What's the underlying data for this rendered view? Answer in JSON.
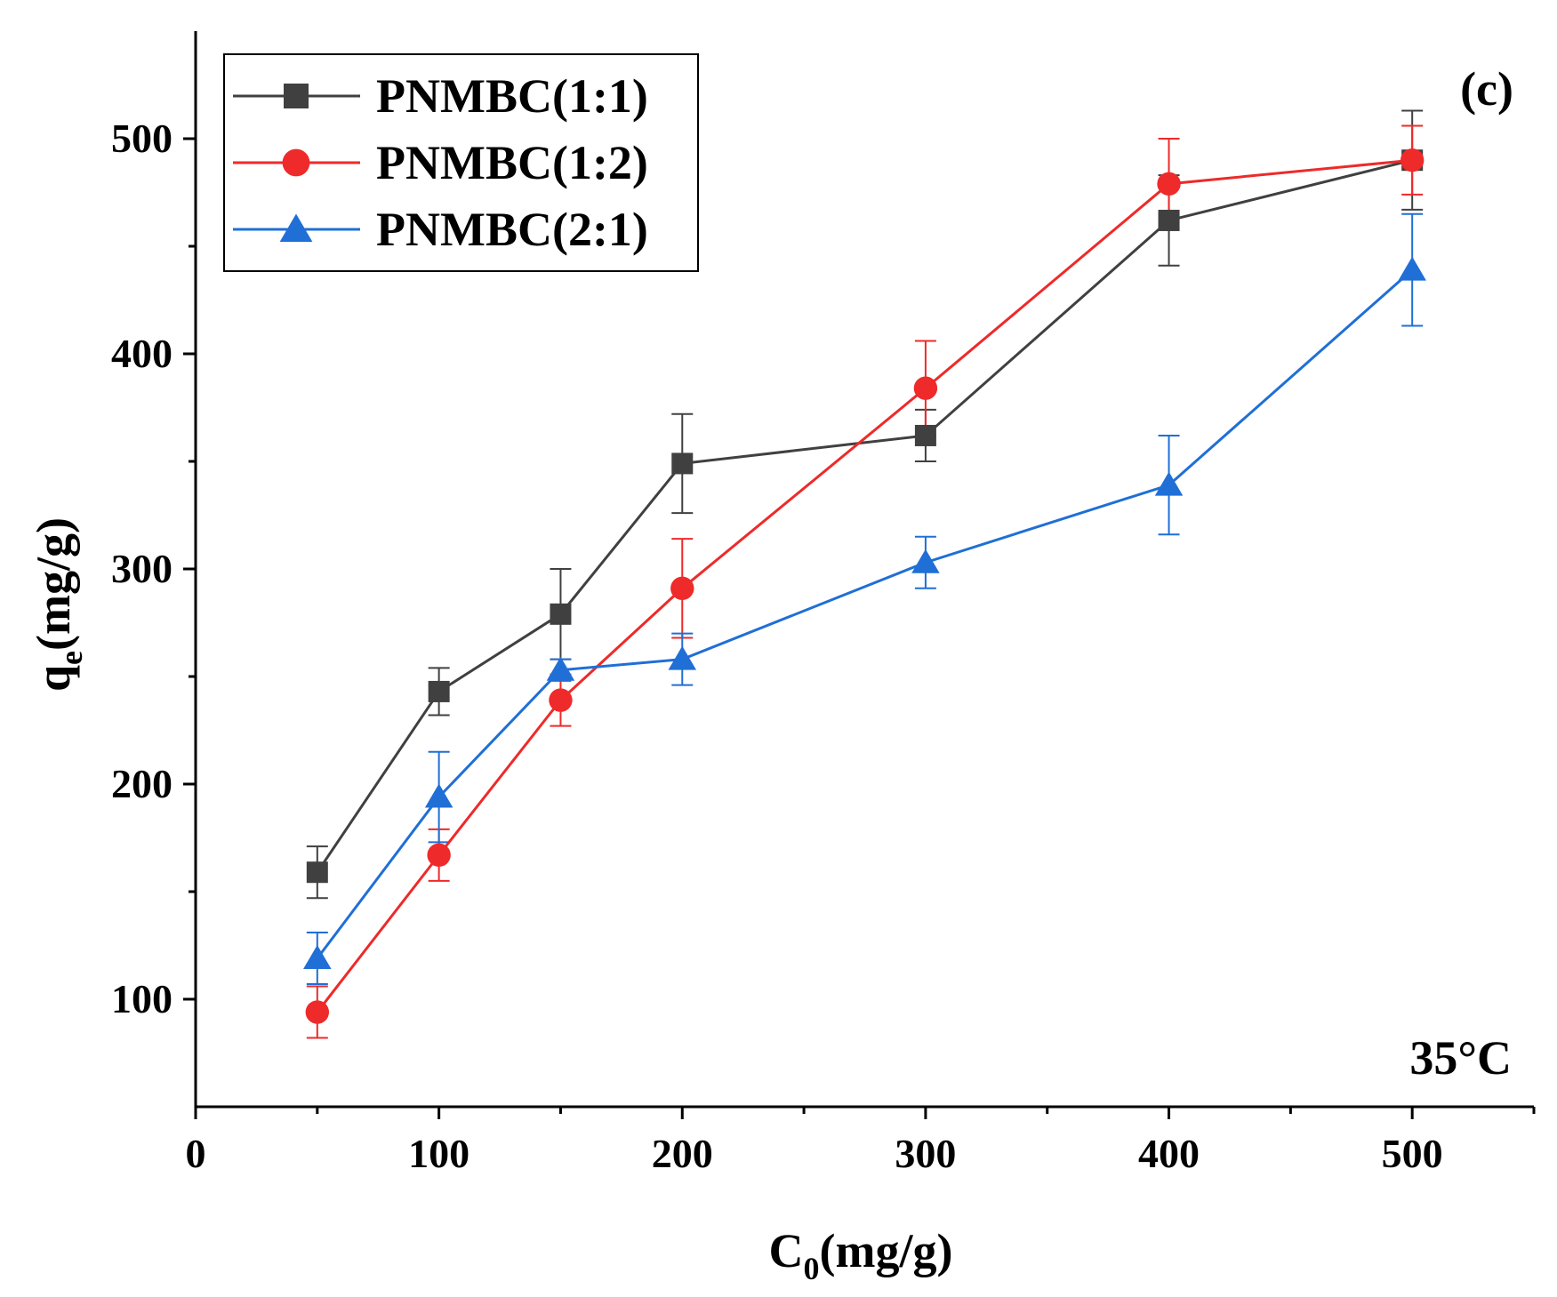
{
  "chart_data": {
    "type": "line",
    "title": "",
    "panel_label": "(c)",
    "annotation": "35°C",
    "xlabel": {
      "main": "C",
      "sub": "0",
      "rest": "(mg/g)"
    },
    "ylabel": {
      "main": "q",
      "sub": "e",
      "rest": "(mg/g)"
    },
    "xlim": [
      0,
      550
    ],
    "ylim": [
      50,
      550
    ],
    "xticks": [
      0,
      100,
      200,
      300,
      400,
      500
    ],
    "yticks": [
      100,
      200,
      300,
      400,
      500
    ],
    "xtick_labels": [
      "0",
      "100",
      "200",
      "300",
      "400",
      "500"
    ],
    "ytick_labels": [
      "100",
      "200",
      "300",
      "400",
      "500"
    ],
    "grid": false,
    "legend_position": "top-left",
    "x": [
      50,
      100,
      150,
      200,
      300,
      400,
      500
    ],
    "series": [
      {
        "name": "PNMBC(1:1)",
        "color": "#404040",
        "marker": "square",
        "values": [
          159,
          243,
          279,
          349,
          362,
          462,
          490
        ],
        "errors": [
          12,
          11,
          21,
          23,
          12,
          21,
          23
        ]
      },
      {
        "name": "PNMBC(1:2)",
        "color": "#ee2a2a",
        "marker": "circle",
        "values": [
          94,
          167,
          239,
          291,
          384,
          479,
          490
        ],
        "errors": [
          12,
          12,
          12,
          23,
          22,
          21,
          16
        ]
      },
      {
        "name": "PNMBC(2:1)",
        "color": "#1f6fd6",
        "marker": "triangle",
        "values": [
          119,
          194,
          253,
          258,
          303,
          339,
          439
        ],
        "errors": [
          12,
          21,
          5,
          12,
          12,
          23,
          26
        ]
      }
    ]
  }
}
